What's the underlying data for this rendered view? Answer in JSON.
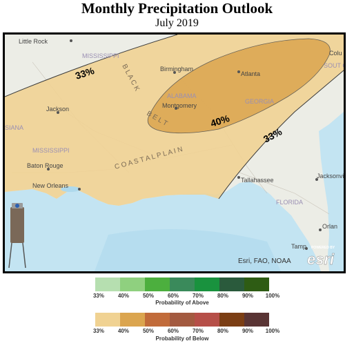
{
  "title": "Monthly Precipitation Outlook",
  "subtitle": "July 2019",
  "map": {
    "place_labels": {
      "little_rock": "Little Rock",
      "mississippi_n": "MISSISSIPPI",
      "black": "B L A C K",
      "birmingham": "Birmingham",
      "atlanta": "Atlanta",
      "alabama": "ALABAMA",
      "jackson": "Jackson",
      "montgomery": "Montgomery",
      "belt": "B E L T",
      "georgia": "GEORGIA",
      "louisiana_part": "SIANA",
      "mississippi_s": "MISSISSIPPI",
      "coastal_plain": "C O A S T A L   P L A I N",
      "baton_rouge": "Baton Rouge",
      "new_orleans": "New Orleans",
      "tallahassee": "Tallahassee",
      "florida": "FLORIDA",
      "jacksonville": "Jacksonvi",
      "orlando": "Orlan",
      "tampa": "Tamp",
      "columbia": "Colu",
      "south_carolina": "SOUT CARO"
    },
    "contour_labels": {
      "c33_west": "33%",
      "c40": "40%",
      "c33_east": "33%"
    },
    "attribution": "Esri, FAO, NOAA",
    "esri_logo_small": "POWERED BY",
    "esri_logo": "esri"
  },
  "legend_above": {
    "title": "Probability of Above",
    "ticks": [
      "33%",
      "40%",
      "50%",
      "60%",
      "70%",
      "80%",
      "90%",
      "100%"
    ],
    "colors": [
      "#b6dfb0",
      "#8fd07f",
      "#4caf3e",
      "#3a8a5b",
      "#19923e",
      "#2a5a3c",
      "#2e5c14"
    ]
  },
  "legend_below": {
    "title": "Probability of Below",
    "ticks": [
      "33%",
      "40%",
      "50%",
      "60%",
      "70%",
      "80%",
      "90%",
      "100%"
    ],
    "colors": [
      "#f0d292",
      "#dba54f",
      "#c16b3a",
      "#a35a40",
      "#b64f48",
      "#7b3e14",
      "#593434"
    ]
  }
}
